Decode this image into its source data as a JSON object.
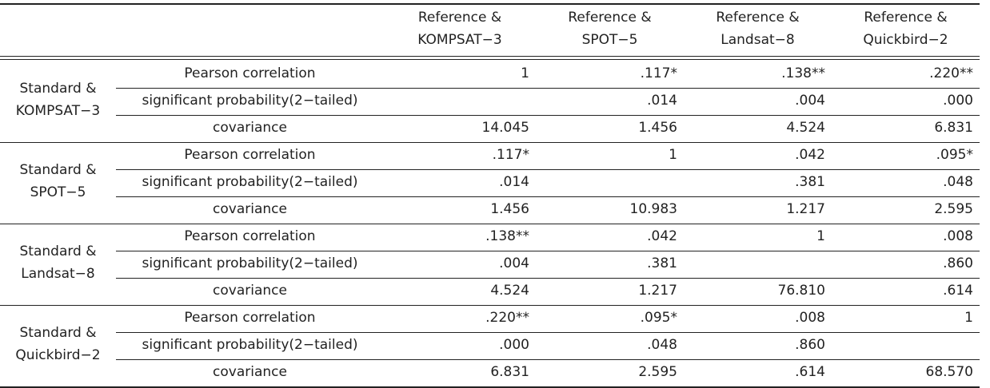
{
  "header": {
    "columns": [
      [
        "Reference &",
        "KOMPSAT−3"
      ],
      [
        "Reference &",
        "SPOT−5"
      ],
      [
        "Reference &",
        "Landsat−8"
      ],
      [
        "Reference &",
        "Quickbird−2"
      ]
    ]
  },
  "groups": [
    {
      "label": [
        "Standard &",
        "KOMPSAT−3"
      ],
      "rows": [
        {
          "label": "Pearson correlation",
          "cells": [
            "1",
            ".117*",
            ".138**",
            ".220**"
          ]
        },
        {
          "label": "significant probability(2−tailed)",
          "cells": [
            null,
            ".014",
            ".004",
            ".000"
          ]
        },
        {
          "label": "covariance",
          "cells": [
            "14.045",
            "1.456",
            "4.524",
            "6.831"
          ]
        }
      ]
    },
    {
      "label": [
        "Standard &",
        "SPOT−5"
      ],
      "rows": [
        {
          "label": "Pearson correlation",
          "cells": [
            ".117*",
            "1",
            ".042",
            ".095*"
          ]
        },
        {
          "label": "significant probability(2−tailed)",
          "cells": [
            ".014",
            null,
            ".381",
            ".048"
          ]
        },
        {
          "label": "covariance",
          "cells": [
            "1.456",
            "10.983",
            "1.217",
            "2.595"
          ]
        }
      ]
    },
    {
      "label": [
        "Standard &",
        "Landsat−8"
      ],
      "rows": [
        {
          "label": "Pearson correlation",
          "cells": [
            ".138**",
            ".042",
            "1",
            ".008"
          ]
        },
        {
          "label": "significant probability(2−tailed)",
          "cells": [
            ".004",
            ".381",
            null,
            ".860"
          ]
        },
        {
          "label": "covariance",
          "cells": [
            "4.524",
            "1.217",
            "76.810",
            ".614"
          ]
        }
      ]
    },
    {
      "label": [
        "Standard &",
        "Quickbird−2"
      ],
      "rows": [
        {
          "label": "Pearson correlation",
          "cells": [
            ".220**",
            ".095*",
            ".008",
            "1"
          ]
        },
        {
          "label": "significant probability(2−tailed)",
          "cells": [
            ".000",
            ".048",
            ".860",
            null
          ]
        },
        {
          "label": "covariance",
          "cells": [
            "6.831",
            "2.595",
            ".614",
            "68.570"
          ]
        }
      ]
    }
  ]
}
